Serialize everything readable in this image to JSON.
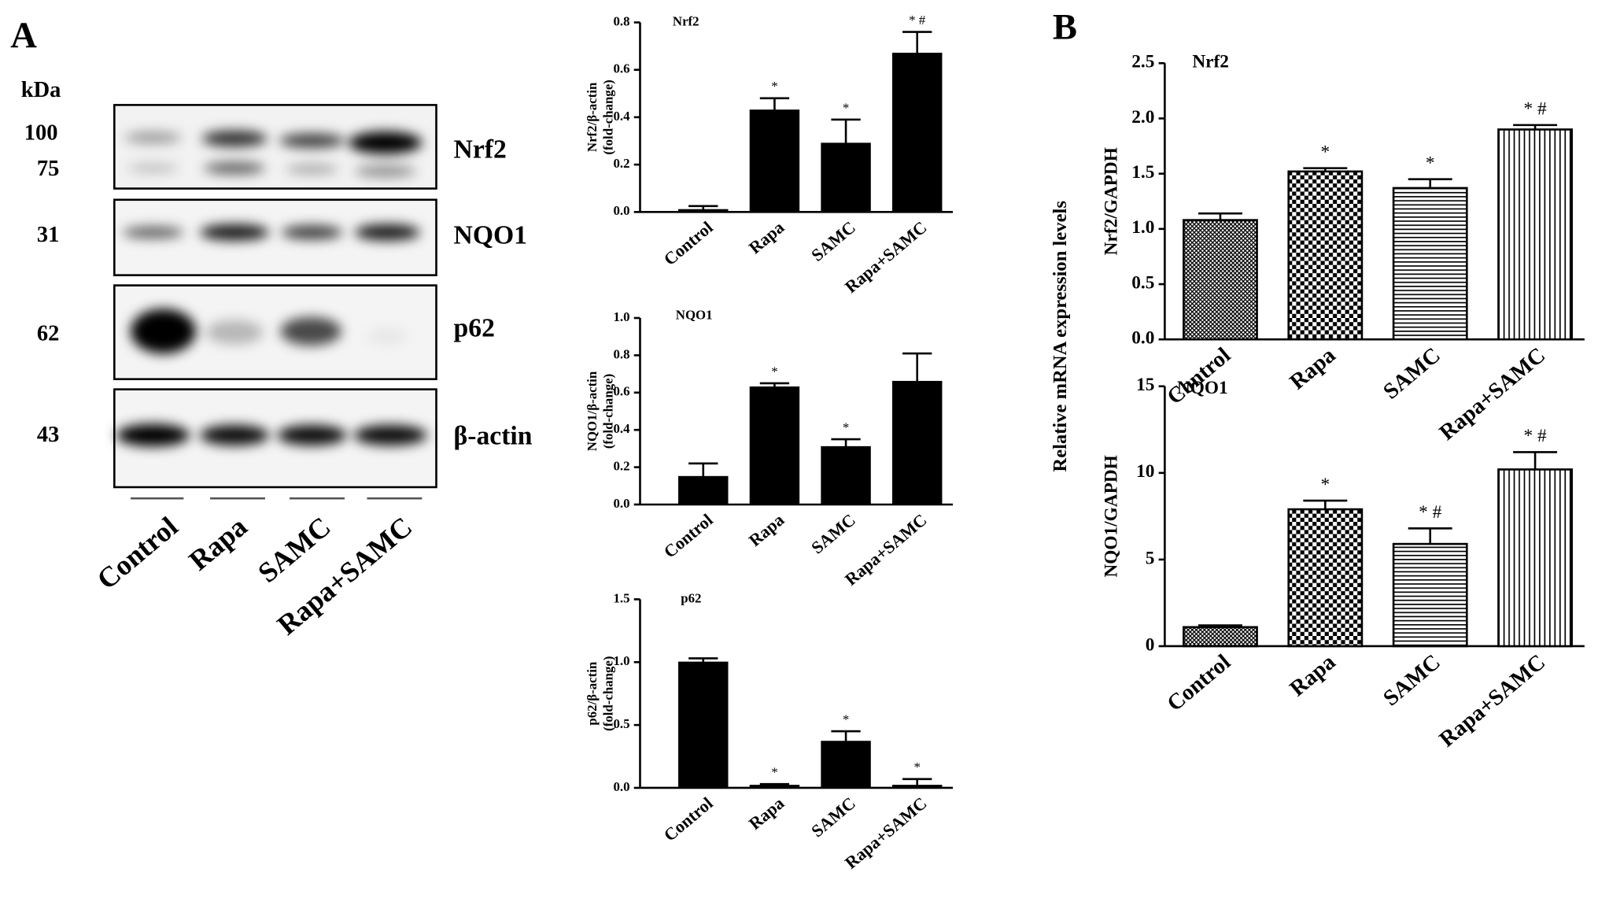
{
  "panel_labels": [
    "A",
    "B"
  ],
  "blot": {
    "unit": "kDa",
    "markers": [
      "100",
      "75",
      "31",
      "62",
      "43"
    ],
    "proteins": [
      "Nrf2",
      "NQO1",
      "p62",
      "β-actin"
    ],
    "lanes": [
      "Control",
      "Rapa",
      "SAMC",
      "Rapa+SAMC"
    ]
  },
  "b_ylabel": "Relative mRNA expression levels",
  "chart_data": [
    {
      "type": "bar",
      "title": "Nrf2",
      "ylabel": [
        "Nrf2/β-actin",
        "(fold-change)"
      ],
      "categories": [
        "Control",
        "Rapa",
        "SAMC",
        "Rapa+SAMC"
      ],
      "values": [
        0.01,
        0.43,
        0.29,
        0.67
      ],
      "errors": [
        0.015,
        0.05,
        0.1,
        0.09
      ],
      "annotations": [
        null,
        "*",
        "*",
        "* #"
      ],
      "color": "#000000",
      "ylim": [
        0,
        0.8
      ],
      "yticks": [
        {
          "value": 0,
          "label": "0.0"
        },
        0.2,
        0.4,
        0.6,
        0.8
      ]
    },
    {
      "type": "bar",
      "title": "NQO1",
      "ylabel": [
        "NQO1/β-actin",
        "(fold-change)"
      ],
      "categories": [
        "Control",
        "Rapa",
        "SAMC",
        "Rapa+SAMC"
      ],
      "values": [
        0.15,
        0.63,
        0.31,
        0.66
      ],
      "errors": [
        0.07,
        0.02,
        0.04,
        0.15
      ],
      "annotations": [
        null,
        "*",
        "*",
        null
      ],
      "color": "#000000",
      "ylim": [
        0,
        1
      ],
      "yticks": [
        {
          "value": 0,
          "label": "0.0"
        },
        0.2,
        0.4,
        0.6,
        0.8,
        {
          "value": 1,
          "label": "1.0"
        }
      ]
    },
    {
      "type": "bar",
      "title": "p62",
      "ylabel": [
        "p62/β-actin",
        "(fold-change)"
      ],
      "categories": [
        "Control",
        "Rapa",
        "SAMC",
        "Rapa+SAMC"
      ],
      "values": [
        1.0,
        0.02,
        0.37,
        0.02
      ],
      "errors": [
        0.03,
        0.01,
        0.08,
        0.05
      ],
      "annotations": [
        null,
        "*",
        "*",
        "*"
      ],
      "color": "#000000",
      "ylim": [
        0,
        1.5
      ],
      "yticks": [
        {
          "value": 0,
          "label": "0.0"
        },
        0.5,
        {
          "value": 1,
          "label": "1.0"
        },
        1.5
      ]
    },
    {
      "type": "bar",
      "title": "Nrf2",
      "ylabel": [
        "Nrf2/GAPDH"
      ],
      "categories": [
        "Control",
        "Rapa",
        "SAMC",
        "Rapa+SAMC"
      ],
      "values": [
        1.08,
        1.52,
        1.37,
        1.9
      ],
      "errors": [
        0.06,
        0.03,
        0.08,
        0.04
      ],
      "annotations": [
        null,
        "*",
        "*",
        "* #"
      ],
      "color": "#000000",
      "patterns": [
        "crosshatch",
        "checker",
        "hlines",
        "vlines"
      ],
      "ylim": [
        0,
        2.5
      ],
      "yticks": [
        {
          "value": 0,
          "label": "0.0"
        },
        0.5,
        {
          "value": 1,
          "label": "1.0"
        },
        1.5,
        {
          "value": 2,
          "label": "2.0"
        },
        2.5
      ]
    },
    {
      "type": "bar",
      "title": "NQO1",
      "ylabel": [
        "NQO1/GAPDH"
      ],
      "categories": [
        "Control",
        "Rapa",
        "SAMC",
        "Rapa+SAMC"
      ],
      "values": [
        1.1,
        7.9,
        5.9,
        10.2
      ],
      "errors": [
        0.1,
        0.5,
        0.9,
        1.0
      ],
      "annotations": [
        null,
        "*",
        "* #",
        "* #"
      ],
      "color": "#000000",
      "patterns": [
        "crosshatch",
        "checker",
        "hlines",
        "vlines"
      ],
      "ylim": [
        0,
        15
      ],
      "yticks": [
        0,
        5,
        10,
        15
      ]
    }
  ]
}
